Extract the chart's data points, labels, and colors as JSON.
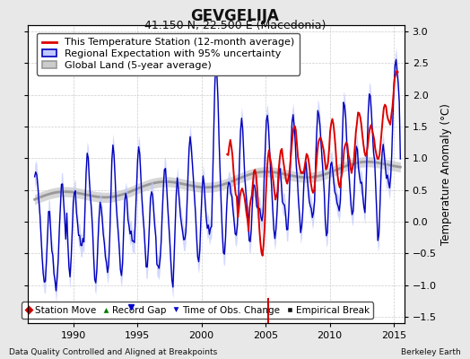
{
  "title": "GEVGELIJA",
  "subtitle": "41.150 N, 22.500 E (Macedonia)",
  "xlabel_left": "Data Quality Controlled and Aligned at Breakpoints",
  "xlabel_right": "Berkeley Earth",
  "ylabel": "Temperature Anomaly (°C)",
  "xlim": [
    1986.5,
    2015.8
  ],
  "ylim": [
    -1.6,
    3.1
  ],
  "yticks": [
    -1.5,
    -1.0,
    -0.5,
    0.0,
    0.5,
    1.0,
    1.5,
    2.0,
    2.5,
    3.0
  ],
  "xticks": [
    1990,
    1995,
    2000,
    2005,
    2010,
    2015
  ],
  "background_color": "#e8e8e8",
  "plot_bg_color": "#ffffff",
  "red_line_color": "#dd0000",
  "blue_line_color": "#0000bb",
  "blue_fill_color": "#c0c8ff",
  "gray_line_color": "#999999",
  "gray_fill_color": "#cccccc",
  "title_fontsize": 12,
  "subtitle_fontsize": 9,
  "legend_fontsize": 8,
  "tick_fontsize": 8,
  "station_move_color": "#cc0000",
  "record_gap_color": "#007700",
  "obs_change_color": "#0000cc",
  "empirical_break_color": "#111111"
}
